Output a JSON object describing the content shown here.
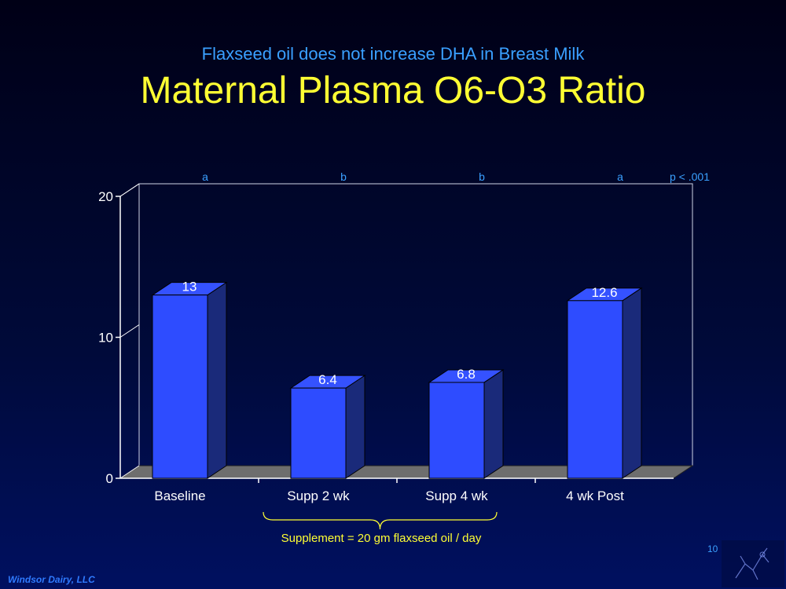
{
  "slide": {
    "subtitle": "Flaxseed oil does not increase DHA in Breast Milk",
    "title": "Maternal Plasma O6-O3 Ratio",
    "footer": "Windsor Dairy, LLC",
    "slide_number": "10",
    "bracket_note": "Supplement = 20 gm flaxseed oil / day"
  },
  "colors": {
    "bar_front": "#2e4cff",
    "bar_side": "#1a2a7a",
    "bar_top": "#3552ff",
    "floor": "#6e6e6e",
    "axis": "#ffffff",
    "title": "#ffff33",
    "subtitle": "#3aa0ff"
  },
  "chart_data": {
    "type": "bar",
    "categories": [
      "Baseline",
      "Supp 2 wk",
      "Supp 4 wk",
      "4 wk Post"
    ],
    "values": [
      13,
      6.4,
      6.8,
      12.6
    ],
    "value_labels": [
      "13",
      "6.4",
      "6.8",
      "12.6"
    ],
    "significance_letters": [
      "a",
      "b",
      "b",
      "a"
    ],
    "p_value_label": "p < .001",
    "yticks": [
      0,
      10,
      20
    ],
    "ylim": [
      0,
      20
    ],
    "grid": false,
    "style": "3d"
  }
}
